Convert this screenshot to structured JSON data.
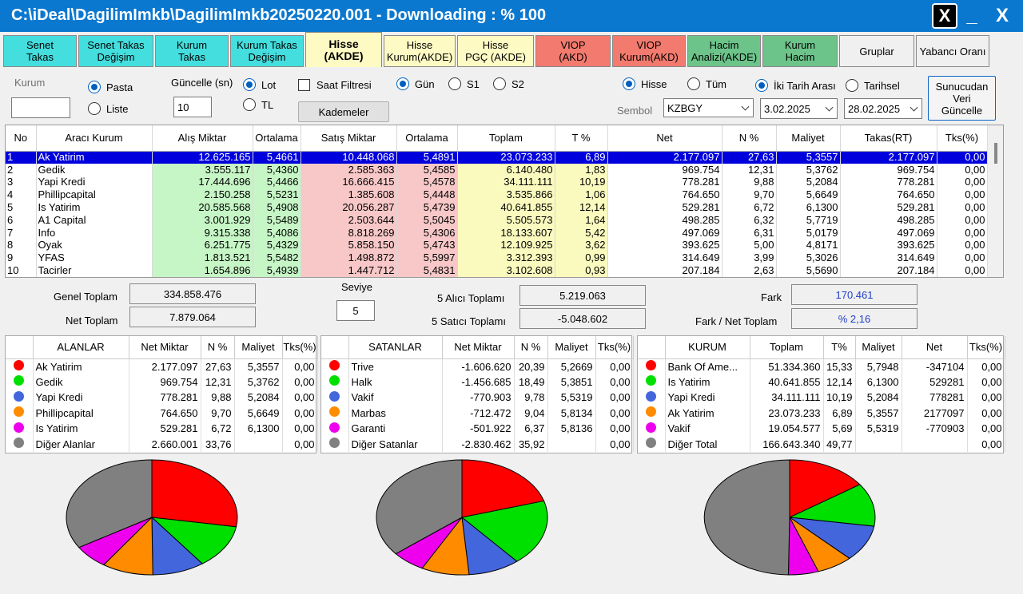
{
  "window": {
    "title": "C:\\iDeal\\DagilimImkb\\DagilimImkb20250220.001 - Downloading : % 100",
    "x_label": "X",
    "minimize": "_",
    "close": "X"
  },
  "tabs": [
    {
      "label": "Senet\nTakas",
      "style": "cyan"
    },
    {
      "label": "Senet Takas\nDeğişim",
      "style": "cyan"
    },
    {
      "label": "Kurum\nTakas",
      "style": "cyan"
    },
    {
      "label": "Kurum Takas\nDeğişim",
      "style": "cyan"
    },
    {
      "label": "Hisse\n(AKDE)",
      "style": "active"
    },
    {
      "label": "Hisse\nKurum(AKDE)",
      "style": "yellow"
    },
    {
      "label": "Hisse\nPGÇ (AKDE)",
      "style": "yellow"
    },
    {
      "label": "VIOP\n(AKD)",
      "style": "red"
    },
    {
      "label": "VIOP\nKurum(AKD)",
      "style": "red"
    },
    {
      "label": "Hacim\nAnalizi(AKDE)",
      "style": "green"
    },
    {
      "label": "Kurum\nHacim",
      "style": "green"
    },
    {
      "label": "Gruplar",
      "style": "plain"
    },
    {
      "label": "Yabancı Oranı",
      "style": "plain"
    }
  ],
  "controls": {
    "kurum_label": "Kurum",
    "kurum_value": "",
    "pasta": "Pasta",
    "liste": "Liste",
    "guncelle_label": "Güncelle (sn)",
    "guncelle_value": "10",
    "lot": "Lot",
    "tl": "TL",
    "saat_filtresi": "Saat Filtresi",
    "kademeler": "Kademeler",
    "gun": "Gün",
    "s1": "S1",
    "s2": "S2",
    "hisse": "Hisse",
    "tum": "Tüm",
    "iki_tarih": "İki Tarih Arası",
    "tarihsel": "Tarihsel",
    "sembol_label": "Sembol",
    "sembol_value": "KZBGY",
    "date_from": "3.02.2025",
    "date_to": "28.02.2025",
    "sunucudan": "Sunucudan\nVeri\nGüncelle"
  },
  "grid": {
    "headers": [
      "No",
      "Aracı Kurum",
      "Alış Miktar",
      "Ortalama",
      "Satış Miktar",
      "Ortalama",
      "Toplam",
      "T %",
      "Net",
      "N %",
      "Maliyet",
      "Takas(RT)",
      "Tks(%)"
    ],
    "rows": [
      [
        "1",
        "Ak Yatirim",
        "12.625.165",
        "5,4661",
        "10.448.068",
        "5,4891",
        "23.073.233",
        "6,89",
        "2.177.097",
        "27,63",
        "5,3557",
        "2.177.097",
        "0,00"
      ],
      [
        "2",
        "Gedik",
        "3.555.117",
        "5,4360",
        "2.585.363",
        "5,4585",
        "6.140.480",
        "1,83",
        "969.754",
        "12,31",
        "5,3762",
        "969.754",
        "0,00"
      ],
      [
        "3",
        "Yapi Kredi",
        "17.444.696",
        "5,4466",
        "16.666.415",
        "5,4578",
        "34.111.111",
        "10,19",
        "778.281",
        "9,88",
        "5,2084",
        "778.281",
        "0,00"
      ],
      [
        "4",
        "Phillipcapital",
        "2.150.258",
        "5,5231",
        "1.385.608",
        "5,4448",
        "3.535.866",
        "1,06",
        "764.650",
        "9,70",
        "5,6649",
        "764.650",
        "0,00"
      ],
      [
        "5",
        "Is Yatirim",
        "20.585.568",
        "5,4908",
        "20.056.287",
        "5,4739",
        "40.641.855",
        "12,14",
        "529.281",
        "6,72",
        "6,1300",
        "529.281",
        "0,00"
      ],
      [
        "6",
        "A1 Capital",
        "3.001.929",
        "5,5489",
        "2.503.644",
        "5,5045",
        "5.505.573",
        "1,64",
        "498.285",
        "6,32",
        "5,7719",
        "498.285",
        "0,00"
      ],
      [
        "7",
        "Info",
        "9.315.338",
        "5,4086",
        "8.818.269",
        "5,4306",
        "18.133.607",
        "5,42",
        "497.069",
        "6,31",
        "5,0179",
        "497.069",
        "0,00"
      ],
      [
        "8",
        "Oyak",
        "6.251.775",
        "5,4329",
        "5.858.150",
        "5,4743",
        "12.109.925",
        "3,62",
        "393.625",
        "5,00",
        "4,8171",
        "393.625",
        "0,00"
      ],
      [
        "9",
        "YFAS",
        "1.813.521",
        "5,5482",
        "1.498.872",
        "5,5997",
        "3.312.393",
        "0,99",
        "314.649",
        "3,99",
        "5,3026",
        "314.649",
        "0,00"
      ],
      [
        "10",
        "Tacirler",
        "1.654.896",
        "5,4939",
        "1.447.712",
        "5,4831",
        "3.102.608",
        "0,93",
        "207.184",
        "2,63",
        "5,5690",
        "207.184",
        "0,00"
      ]
    ]
  },
  "summary": {
    "genel_toplam_label": "Genel Toplam",
    "genel_toplam": "334.858.476",
    "net_toplam_label": "Net Toplam",
    "net_toplam": "7.879.064",
    "seviye_label": "Seviye",
    "seviye": "5",
    "alici_label": "5  Alıcı Toplamı",
    "alici": "5.219.063",
    "satici_label": "5  Satıcı Toplamı",
    "satici": "-5.048.602",
    "fark_label": "Fark",
    "fark": "170.461",
    "fark_net_label": "Fark / Net Toplam",
    "fark_net": "% 2,16"
  },
  "colors": {
    "red": "#ff0000",
    "green": "#00e000",
    "blue": "#4466dd",
    "orange": "#ff8c00",
    "magenta": "#ee00ee",
    "gray": "#808080"
  },
  "panels": {
    "alanlar": {
      "headers": [
        "ALANLAR",
        "Net Miktar",
        "N %",
        "Maliyet",
        "Tks(%)"
      ],
      "rows": [
        {
          "color": "red",
          "cells": [
            "Ak Yatirim",
            "2.177.097",
            "27,63",
            "5,3557",
            "0,00"
          ]
        },
        {
          "color": "green",
          "cells": [
            "Gedik",
            "969.754",
            "12,31",
            "5,3762",
            "0,00"
          ]
        },
        {
          "color": "blue",
          "cells": [
            "Yapi Kredi",
            "778.281",
            "9,88",
            "5,2084",
            "0,00"
          ]
        },
        {
          "color": "orange",
          "cells": [
            "Phillipcapital",
            "764.650",
            "9,70",
            "5,6649",
            "0,00"
          ]
        },
        {
          "color": "magenta",
          "cells": [
            "Is Yatirim",
            "529.281",
            "6,72",
            "6,1300",
            "0,00"
          ]
        },
        {
          "color": "gray",
          "cells": [
            "Diğer Alanlar",
            "2.660.001",
            "33,76",
            "",
            "0,00"
          ]
        }
      ]
    },
    "satanlar": {
      "headers": [
        "SATANLAR",
        "Net Miktar",
        "N %",
        "Maliyet",
        "Tks(%)"
      ],
      "rows": [
        {
          "color": "red",
          "cells": [
            "Trive",
            "-1.606.620",
            "20,39",
            "5,2669",
            "0,00"
          ]
        },
        {
          "color": "green",
          "cells": [
            "Halk",
            "-1.456.685",
            "18,49",
            "5,3851",
            "0,00"
          ]
        },
        {
          "color": "blue",
          "cells": [
            "Vakif",
            "-770.903",
            "9,78",
            "5,5319",
            "0,00"
          ]
        },
        {
          "color": "orange",
          "cells": [
            "Marbas",
            "-712.472",
            "9,04",
            "5,8134",
            "0,00"
          ]
        },
        {
          "color": "magenta",
          "cells": [
            "Garanti",
            "-501.922",
            "6,37",
            "5,8136",
            "0,00"
          ]
        },
        {
          "color": "gray",
          "cells": [
            "Diğer Satanlar",
            "-2.830.462",
            "35,92",
            "",
            "0,00"
          ]
        }
      ]
    },
    "kurum": {
      "headers": [
        "KURUM",
        "Toplam",
        "T%",
        "Maliyet",
        "Net",
        "Tks(%)"
      ],
      "rows": [
        {
          "color": "red",
          "cells": [
            "Bank Of Ame...",
            "51.334.360",
            "15,33",
            "5,7948",
            "-347104",
            "0,00"
          ]
        },
        {
          "color": "green",
          "cells": [
            "Is Yatirim",
            "40.641.855",
            "12,14",
            "6,1300",
            "529281",
            "0,00"
          ]
        },
        {
          "color": "blue",
          "cells": [
            "Yapi Kredi",
            "34.111.111",
            "10,19",
            "5,2084",
            "778281",
            "0,00"
          ]
        },
        {
          "color": "orange",
          "cells": [
            "Ak Yatirim",
            "23.073.233",
            "6,89",
            "5,3557",
            "2177097",
            "0,00"
          ]
        },
        {
          "color": "magenta",
          "cells": [
            "Vakif",
            "19.054.577",
            "5,69",
            "5,5319",
            "-770903",
            "0,00"
          ]
        },
        {
          "color": "gray",
          "cells": [
            "Diğer Total",
            "166.643.340",
            "49,77",
            "",
            "",
            "0,00"
          ]
        }
      ]
    }
  },
  "chart_data": [
    {
      "type": "pie",
      "labels": [
        "Ak Yatirim",
        "Gedik",
        "Yapi Kredi",
        "Phillipcapital",
        "Is Yatirim",
        "Diğer Alanlar"
      ],
      "values": [
        27.63,
        12.31,
        9.88,
        9.7,
        6.72,
        33.76
      ]
    },
    {
      "type": "pie",
      "labels": [
        "Trive",
        "Halk",
        "Vakif",
        "Marbas",
        "Garanti",
        "Diğer Satanlar"
      ],
      "values": [
        20.39,
        18.49,
        9.78,
        9.04,
        6.37,
        35.92
      ]
    },
    {
      "type": "pie",
      "labels": [
        "Bank Of Ame...",
        "Is Yatirim",
        "Yapi Kredi",
        "Ak Yatirim",
        "Vakif",
        "Diğer Total"
      ],
      "values": [
        15.33,
        12.14,
        10.19,
        6.89,
        5.69,
        49.77
      ]
    }
  ]
}
